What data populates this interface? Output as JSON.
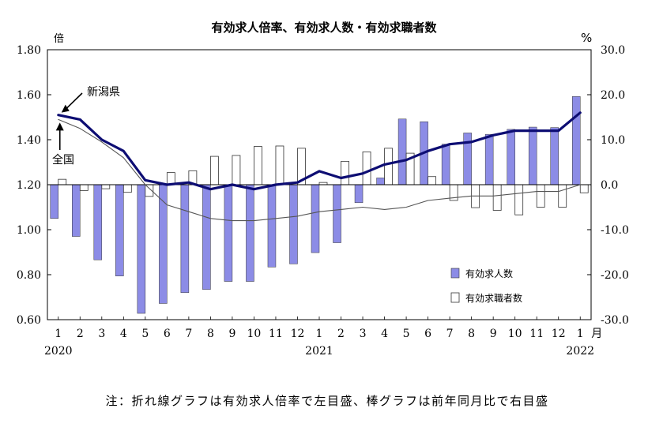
{
  "chart_data": {
    "type": "bar+line",
    "title": "有効求人倍率、有効求人数・有効求職者数",
    "left_axis": {
      "unit": "倍",
      "ylim": [
        0.6,
        1.8
      ],
      "ticks": [
        "0.60",
        "0.80",
        "1.00",
        "1.20",
        "1.40",
        "1.60",
        "1.80"
      ]
    },
    "right_axis": {
      "unit": "%",
      "ylim": [
        -30.0,
        30.0
      ],
      "ticks": [
        "-30.0",
        "-20.0",
        "-10.0",
        "0.0",
        "10.0",
        "20.0",
        "30.0"
      ]
    },
    "x_unit": "月",
    "categories": [
      "1",
      "2",
      "3",
      "4",
      "5",
      "6",
      "7",
      "8",
      "9",
      "10",
      "11",
      "12",
      "1",
      "2",
      "3",
      "4",
      "5",
      "6",
      "7",
      "8",
      "9",
      "10",
      "11",
      "12",
      "1"
    ],
    "year_labels": [
      {
        "text": "2020",
        "at": 0
      },
      {
        "text": "2021",
        "at": 12
      },
      {
        "text": "2022",
        "at": 24
      }
    ],
    "series": [
      {
        "name": "有効求人数",
        "kind": "bar",
        "axis": "right",
        "color": "#8c8ce6",
        "values": [
          -7.5,
          -11.5,
          -16.7,
          -20.3,
          -28.6,
          -26.4,
          -24,
          -23.3,
          -21.5,
          -21.5,
          -18.3,
          -17.6,
          -15.1,
          -12.9,
          -4,
          1.5,
          14.6,
          14,
          9,
          11.5,
          11.2,
          12.3,
          12.8,
          12.7,
          19.6
        ]
      },
      {
        "name": "有効求職者数",
        "kind": "bar",
        "axis": "right",
        "color": "#ffffff",
        "values": [
          1.2,
          -1.3,
          -0.9,
          -1.7,
          -2.6,
          2.7,
          3.1,
          6.3,
          6.5,
          8.5,
          8.6,
          8.1,
          0.5,
          5.2,
          7.3,
          8.1,
          7,
          1.8,
          -3.5,
          -5.1,
          -5.7,
          -6.7,
          -5,
          -5,
          -1.8
        ]
      },
      {
        "name": "新潟県",
        "kind": "line",
        "axis": "left",
        "color": "#0d0d73",
        "values": [
          1.51,
          1.49,
          1.4,
          1.35,
          1.22,
          1.2,
          1.21,
          1.18,
          1.2,
          1.18,
          1.2,
          1.21,
          1.26,
          1.23,
          1.25,
          1.29,
          1.31,
          1.35,
          1.38,
          1.39,
          1.42,
          1.44,
          1.44,
          1.44,
          1.52
        ]
      },
      {
        "name": "全国",
        "kind": "line",
        "axis": "left",
        "color": "#555555",
        "values": [
          1.49,
          1.45,
          1.39,
          1.32,
          1.2,
          1.11,
          1.08,
          1.05,
          1.04,
          1.04,
          1.05,
          1.06,
          1.08,
          1.09,
          1.1,
          1.09,
          1.1,
          1.13,
          1.14,
          1.15,
          1.15,
          1.16,
          1.17,
          1.17,
          1.2
        ]
      }
    ],
    "annotations": [
      {
        "text": "新潟県",
        "series": 2
      },
      {
        "text": "全国",
        "series": 3
      }
    ],
    "legend": {
      "placement": "bottom-right",
      "items": [
        "有効求人数",
        "有効求職者数"
      ]
    },
    "grid": false,
    "note": "注：折れ線グラフは有効求人倍率で左目盛、棒グラフは前年同月比で右目盛"
  }
}
